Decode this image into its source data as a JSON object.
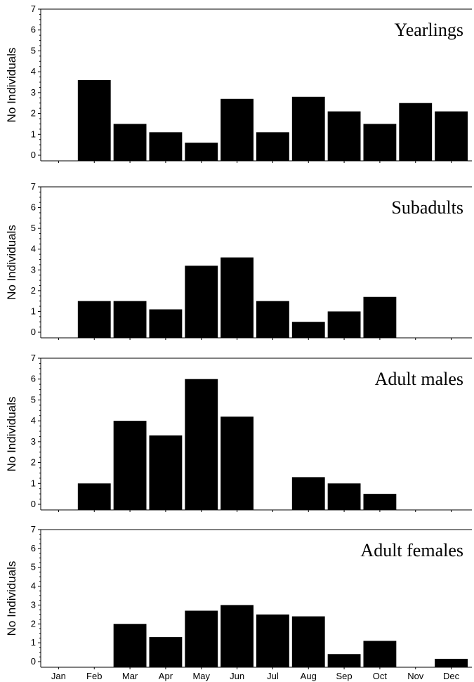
{
  "chart_data": {
    "type": "bar",
    "categories": [
      "Jan",
      "Feb",
      "Mar",
      "Apr",
      "May",
      "Jun",
      "Jul",
      "Aug",
      "Sep",
      "Oct",
      "Nov",
      "Dec"
    ],
    "ylabel": "No Individuals",
    "ylim": [
      0,
      7
    ],
    "yticks": [
      0,
      1,
      2,
      3,
      4,
      5,
      6,
      7
    ],
    "grid": false,
    "panels": [
      {
        "title": "Yearlings",
        "values": [
          0,
          3.6,
          1.5,
          1.1,
          0.6,
          2.7,
          1.1,
          2.8,
          2.1,
          1.5,
          2.5,
          2.1
        ]
      },
      {
        "title": "Subadults",
        "values": [
          0,
          1.5,
          1.5,
          1.1,
          3.2,
          3.6,
          1.5,
          0.5,
          1.0,
          1.7,
          0,
          0
        ]
      },
      {
        "title": "Adult males",
        "values": [
          0,
          1.0,
          4.0,
          3.3,
          6.0,
          4.2,
          0,
          1.3,
          1.0,
          0.5,
          0,
          0
        ]
      },
      {
        "title": "Adult females",
        "values": [
          0,
          0,
          2.0,
          1.3,
          2.7,
          3.0,
          2.5,
          2.4,
          0.4,
          1.1,
          0,
          0.15
        ]
      }
    ]
  }
}
